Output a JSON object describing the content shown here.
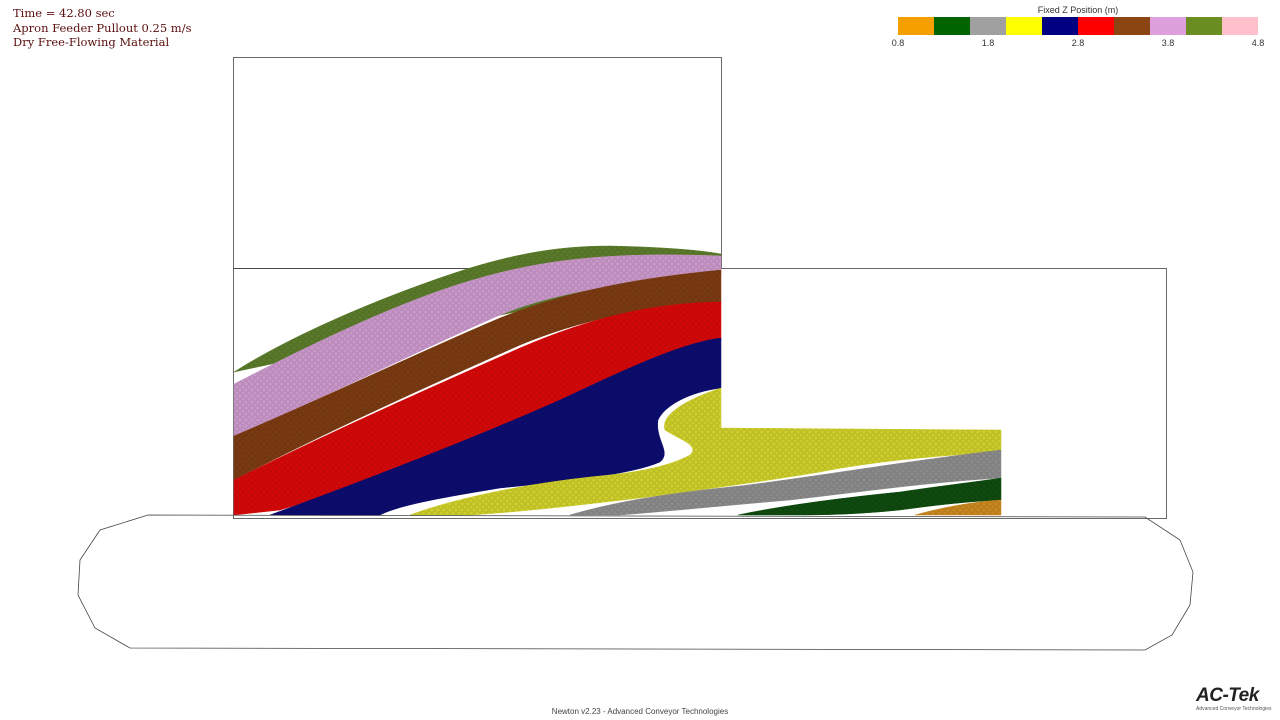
{
  "info": {
    "time": "Time = 42.80 sec",
    "pullout": "Apron Feeder Pullout 0.25 m/s",
    "material": "Dry Free-Flowing Material"
  },
  "legend": {
    "title": "Fixed Z Position (m)",
    "colors": [
      "#f5a000",
      "#006400",
      "#a0a0a0",
      "#ffff00",
      "#000080",
      "#ff0000",
      "#8b4513",
      "#dda0dd",
      "#6b8e23",
      "#ffc0cb"
    ],
    "ticks": [
      "0.8",
      "1.8",
      "2.8",
      "3.8",
      "4.8"
    ]
  },
  "footer": "Newton v2.23 - Advanced Conveyor Technologies",
  "logo": {
    "main": "AC-Tek",
    "sub": "Advanced Conveyor Technologies"
  },
  "layer_colors": {
    "green": "#5a7a2a",
    "lavender": "#c896c8",
    "brown": "#7a3a12",
    "red": "#d40808",
    "navy": "#0c0c6e",
    "yellow": "#cccc2a",
    "gray": "#8a8a8a",
    "dark_green": "#0f4a0f",
    "orange": "#c8861e"
  }
}
